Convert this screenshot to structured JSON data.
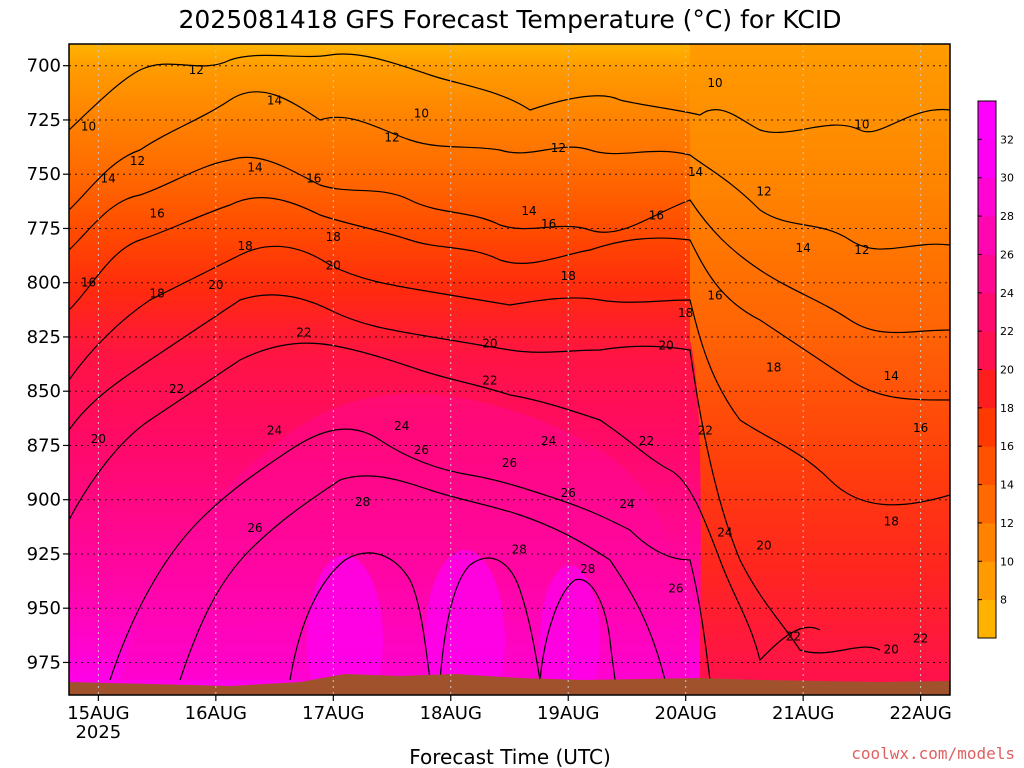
{
  "chart_data": {
    "type": "heatmap",
    "title": "2025081418 GFS Forecast Temperature (°C) for KCID",
    "xlabel": "Forecast Time (UTC)",
    "ylabel": "",
    "x_start": "2025-08-14T18:00Z",
    "x_ticks": [
      {
        "time": "2025-08-15T00:00Z",
        "label": "15AUG",
        "sublabel": "2025"
      },
      {
        "time": "2025-08-16T00:00Z",
        "label": "16AUG"
      },
      {
        "time": "2025-08-17T00:00Z",
        "label": "17AUG"
      },
      {
        "time": "2025-08-18T00:00Z",
        "label": "18AUG"
      },
      {
        "time": "2025-08-19T00:00Z",
        "label": "19AUG"
      },
      {
        "time": "2025-08-20T00:00Z",
        "label": "20AUG"
      },
      {
        "time": "2025-08-21T00:00Z",
        "label": "21AUG"
      },
      {
        "time": "2025-08-22T00:00Z",
        "label": "22AUG"
      }
    ],
    "x_end": "2025-08-22T06:00Z",
    "y_ticks": [
      700,
      725,
      750,
      775,
      800,
      825,
      850,
      875,
      900,
      925,
      950,
      975
    ],
    "ylim": [
      690,
      990
    ],
    "y_reversed": true,
    "grid": true,
    "colorbar": {
      "levels": [
        8,
        10,
        12,
        14,
        16,
        18,
        20,
        22,
        24,
        26,
        28,
        30,
        32
      ],
      "labels": [
        "8",
        "10",
        "12",
        "14",
        "16",
        "18",
        "20",
        "22",
        "24",
        "26",
        "28",
        "30",
        "32"
      ],
      "colors": [
        "#ffb300",
        "#ff9a00",
        "#ff8200",
        "#ff6a00",
        "#ff5200",
        "#ff3a00",
        "#ff1e1e",
        "#ff1050",
        "#ff0a6e",
        "#ff0890",
        "#ff06b0",
        "#ff04d2",
        "#ff00f4",
        "#ff00ff"
      ],
      "placement": "right"
    },
    "contour_labels": [
      {
        "time": "2025-08-14T22:00Z",
        "p": 728,
        "value": 10
      },
      {
        "time": "2025-08-15T20:00Z",
        "p": 702,
        "value": 12
      },
      {
        "time": "2025-08-16T12:00Z",
        "p": 716,
        "value": 14
      },
      {
        "time": "2025-08-17T18:00Z",
        "p": 722,
        "value": 10
      },
      {
        "time": "2025-08-17T12:00Z",
        "p": 733,
        "value": 12
      },
      {
        "time": "2025-08-18T22:00Z",
        "p": 738,
        "value": 12
      },
      {
        "time": "2025-08-20T06:00Z",
        "p": 708,
        "value": 10
      },
      {
        "time": "2025-08-21T12:00Z",
        "p": 727,
        "value": 10
      },
      {
        "time": "2025-08-15T08:00Z",
        "p": 744,
        "value": 12
      },
      {
        "time": "2025-08-15T02:00Z",
        "p": 752,
        "value": 14
      },
      {
        "time": "2025-08-16T08:00Z",
        "p": 747,
        "value": 14
      },
      {
        "time": "2025-08-16T20:00Z",
        "p": 752,
        "value": 16
      },
      {
        "time": "2025-08-18T16:00Z",
        "p": 767,
        "value": 14
      },
      {
        "time": "2025-08-18T20:00Z",
        "p": 773,
        "value": 16
      },
      {
        "time": "2025-08-20T02:00Z",
        "p": 749,
        "value": 14
      },
      {
        "time": "2025-08-20T16:00Z",
        "p": 758,
        "value": 12
      },
      {
        "time": "2025-08-15T12:00Z",
        "p": 768,
        "value": 16
      },
      {
        "time": "2025-08-16T06:00Z",
        "p": 783,
        "value": 18
      },
      {
        "time": "2025-08-17T00:00Z",
        "p": 779,
        "value": 18
      },
      {
        "time": "2025-08-19T18:00Z",
        "p": 769,
        "value": 16
      },
      {
        "time": "2025-08-21T00:00Z",
        "p": 784,
        "value": 14
      },
      {
        "time": "2025-08-21T12:00Z",
        "p": 785,
        "value": 12
      },
      {
        "time": "2025-08-14T22:00Z",
        "p": 800,
        "value": 16
      },
      {
        "time": "2025-08-15T12:00Z",
        "p": 805,
        "value": 18
      },
      {
        "time": "2025-08-16T00:00Z",
        "p": 801,
        "value": 20
      },
      {
        "time": "2025-08-17T00:00Z",
        "p": 792,
        "value": 20
      },
      {
        "time": "2025-08-19T00:00Z",
        "p": 797,
        "value": 18
      },
      {
        "time": "2025-08-20T06:00Z",
        "p": 806,
        "value": 16
      },
      {
        "time": "2025-08-20T00:00Z",
        "p": 814,
        "value": 18
      },
      {
        "time": "2025-08-16T18:00Z",
        "p": 823,
        "value": 22
      },
      {
        "time": "2025-08-18T08:00Z",
        "p": 828,
        "value": 20
      },
      {
        "time": "2025-08-19T20:00Z",
        "p": 829,
        "value": 20
      },
      {
        "time": "2025-08-20T18:00Z",
        "p": 839,
        "value": 18
      },
      {
        "time": "2025-08-21T18:00Z",
        "p": 843,
        "value": 14
      },
      {
        "time": "2025-08-15T16:00Z",
        "p": 849,
        "value": 22
      },
      {
        "time": "2025-08-18T08:00Z",
        "p": 845,
        "value": 22
      },
      {
        "time": "2025-08-15T00:00Z",
        "p": 872,
        "value": 20
      },
      {
        "time": "2025-08-16T12:00Z",
        "p": 868,
        "value": 24
      },
      {
        "time": "2025-08-17T14:00Z",
        "p": 866,
        "value": 24
      },
      {
        "time": "2025-08-18T20:00Z",
        "p": 873,
        "value": 24
      },
      {
        "time": "2025-08-19T16:00Z",
        "p": 873,
        "value": 22
      },
      {
        "time": "2025-08-20T04:00Z",
        "p": 868,
        "value": 22
      },
      {
        "time": "2025-08-22T00:00Z",
        "p": 867,
        "value": 16
      },
      {
        "time": "2025-08-17T18:00Z",
        "p": 877,
        "value": 26
      },
      {
        "time": "2025-08-18T12:00Z",
        "p": 883,
        "value": 26
      },
      {
        "time": "2025-08-16T08:00Z",
        "p": 913,
        "value": 26
      },
      {
        "time": "2025-08-17T06:00Z",
        "p": 901,
        "value": 28
      },
      {
        "time": "2025-08-19T00:00Z",
        "p": 897,
        "value": 26
      },
      {
        "time": "2025-08-19T12:00Z",
        "p": 902,
        "value": 24
      },
      {
        "time": "2025-08-21T18:00Z",
        "p": 910,
        "value": 18
      },
      {
        "time": "2025-08-20T08:00Z",
        "p": 915,
        "value": 24
      },
      {
        "time": "2025-08-18T14:00Z",
        "p": 923,
        "value": 28
      },
      {
        "time": "2025-08-20T16:00Z",
        "p": 921,
        "value": 20
      },
      {
        "time": "2025-08-19T04:00Z",
        "p": 932,
        "value": 28
      },
      {
        "time": "2025-08-19T22:00Z",
        "p": 941,
        "value": 26
      },
      {
        "time": "2025-08-20T22:00Z",
        "p": 963,
        "value": 22
      },
      {
        "time": "2025-08-21T18:00Z",
        "p": 969,
        "value": 20
      },
      {
        "time": "2025-08-22T00:00Z",
        "p": 964,
        "value": 22
      }
    ],
    "credit": "coolwx.com/models"
  }
}
